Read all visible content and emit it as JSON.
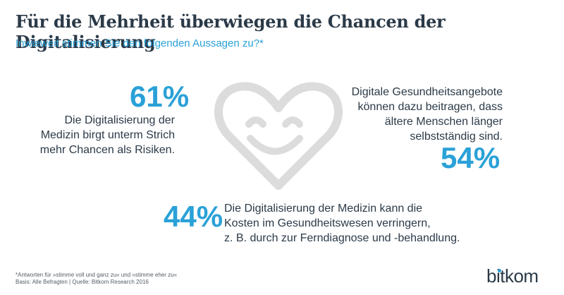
{
  "header": {
    "title": "Für die Mehrheit überwiegen die Chancen der Digitalisierung",
    "subtitle": "Inwieweit stimmen Sie den folgenden Aussagen zu?*"
  },
  "stats": {
    "s61": {
      "percent": "61%",
      "lines": [
        "Die Digitalisierung  der",
        "Medizin birgt unterm Strich",
        "mehr Chancen als Risiken."
      ]
    },
    "s54": {
      "percent": "54%",
      "lines": [
        "Digitale Gesundheitsangebote",
        "können dazu beitragen, dass",
        "ältere Menschen länger",
        "selbstständig sind."
      ]
    },
    "s44": {
      "percent": "44%",
      "lines": [
        "Die Digitalisierung der Medizin kann die",
        "Kosten im Gesundheitswesen verringern,",
        "z. B. durch zur Ferndiagnose und -behandlung."
      ]
    }
  },
  "footnote": {
    "line1": "*Antworten für »stimme voll und ganz zu« und »stimme eher zu«",
    "line2": "Basis: Alle Befragten | Quelle: Bitkom Research 2016"
  },
  "logo": {
    "text": "bitkom"
  },
  "colors": {
    "accent": "#2aa1d7",
    "text": "#2b3a48",
    "heart": "#dcdcdc"
  },
  "icons": {
    "heart": "smiling-heart-icon"
  }
}
